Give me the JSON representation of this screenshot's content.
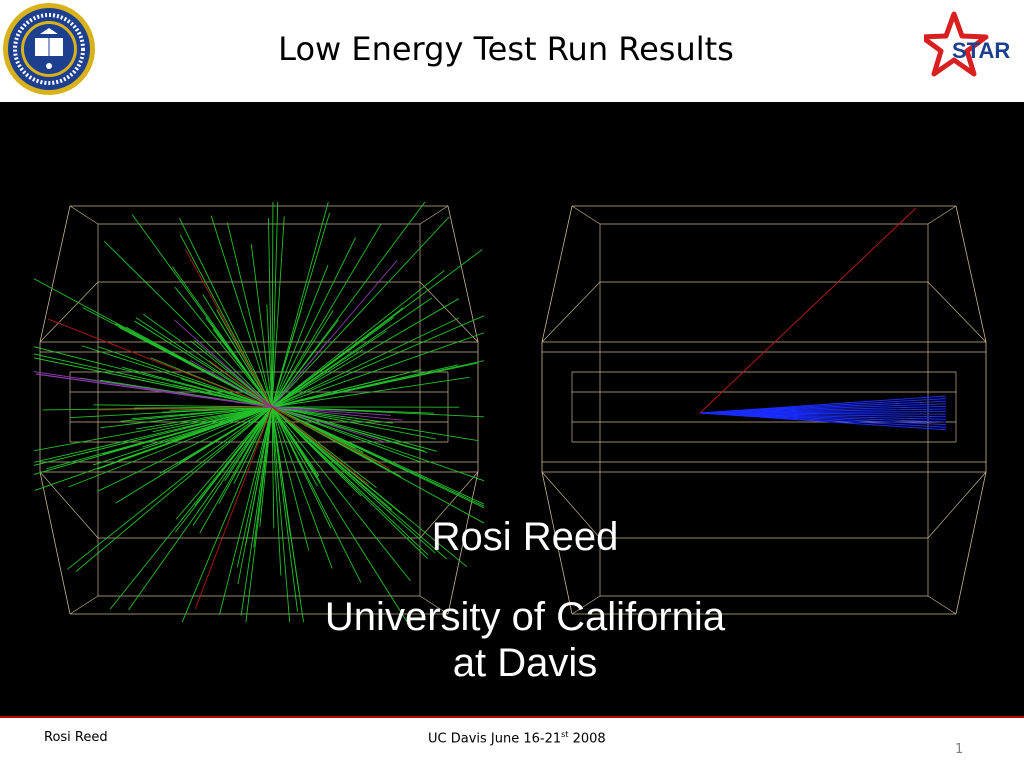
{
  "slide": {
    "title": "Low Energy Test Run Results",
    "author_name": "Rosi Reed",
    "affiliation_line1": "University of California",
    "affiliation_line2": "at Davis"
  },
  "footer": {
    "left": "Rosi Reed",
    "event_prefix": "UC Davis June 16-21",
    "event_sup": "st",
    "event_suffix": " 2008",
    "page_number": "1"
  },
  "logos": {
    "left": "uc-davis-seal",
    "right": "star-experiment-logo",
    "star_text": "STAR"
  },
  "colors": {
    "background": "#000000",
    "frame": "#c8b48c",
    "track_green": "#22c02a",
    "track_blue": "#1a2cff",
    "track_red": "#b01818",
    "track_purple": "#8a3aa8",
    "footer_rule": "#c00000",
    "star_red": "#d82020",
    "seal_blue": "#1c3f8f",
    "seal_gold": "#d8b21a"
  }
}
